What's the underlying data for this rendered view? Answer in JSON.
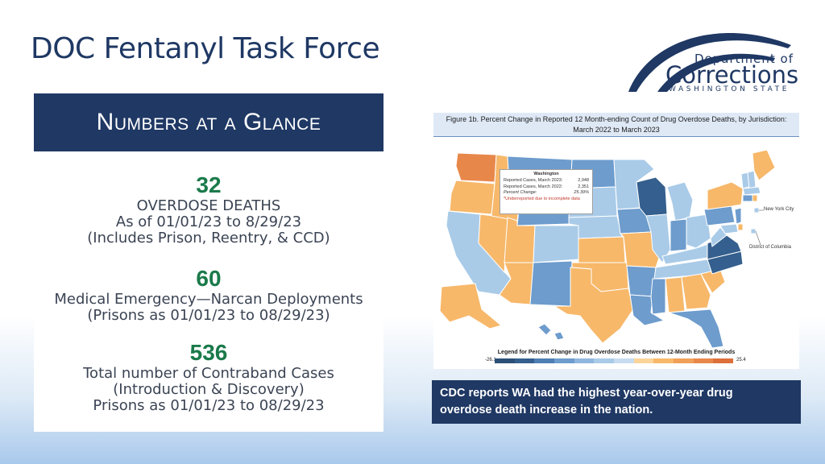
{
  "slide": {
    "title": "DOC Fentanyl Task Force"
  },
  "logo": {
    "line1": "Department of",
    "line2": "Corrections",
    "line3": "WASHINGTON STATE"
  },
  "glance": {
    "banner": "Numbers at a Glance",
    "stats": [
      {
        "number": "32",
        "lines": [
          "OVERDOSE DEATHS",
          "As of 01/01/23 to 8/29/23",
          "(Includes Prison, Reentry, & CCD)"
        ]
      },
      {
        "number": "60",
        "lines": [
          "Medical Emergency—Narcan Deployments",
          "(Prisons as 01/01/23 to 08/29/23)"
        ]
      },
      {
        "number": "536",
        "lines": [
          "Total number of Contraband Cases",
          "(Introduction & Discovery)",
          "Prisons as 01/01/23 to 08/29/23"
        ]
      }
    ],
    "number_color": "#1a7a4a"
  },
  "figure": {
    "title_line1": "Figure 1b. Percent Change in Reported 12 Month-ending Count of Drug Overdose Deaths, by Jurisdiction:",
    "title_line2": "March 2022 to March 2023",
    "tooltip": {
      "state": "Washington",
      "row1_label": "Reported Cases, March 2023:",
      "row1_value": "2,948",
      "row2_label": "Reported Cases, March 2022:",
      "row2_value": "2,351",
      "row3_label": "Percent Change:",
      "row3_value": "25.39%",
      "note": "*Underreported due to incomplete data"
    },
    "callouts": {
      "nyc": "New York City",
      "dc": "District of Columbia"
    },
    "legend": {
      "title": "Legend for Percent Change in Drug Overdose Deaths Between 12-Month Ending Periods",
      "min": "-26.1",
      "max": "25.4"
    },
    "colors": {
      "strong_orange": "#e8874a",
      "orange": "#f7b86a",
      "light_blue": "#a9cbe8",
      "mid_blue": "#6d9ccd",
      "dark_blue": "#345f8e"
    }
  },
  "cdc_note": {
    "line1": "CDC reports WA had the highest year-over-year drug",
    "line2": "overdose death increase in the nation."
  }
}
